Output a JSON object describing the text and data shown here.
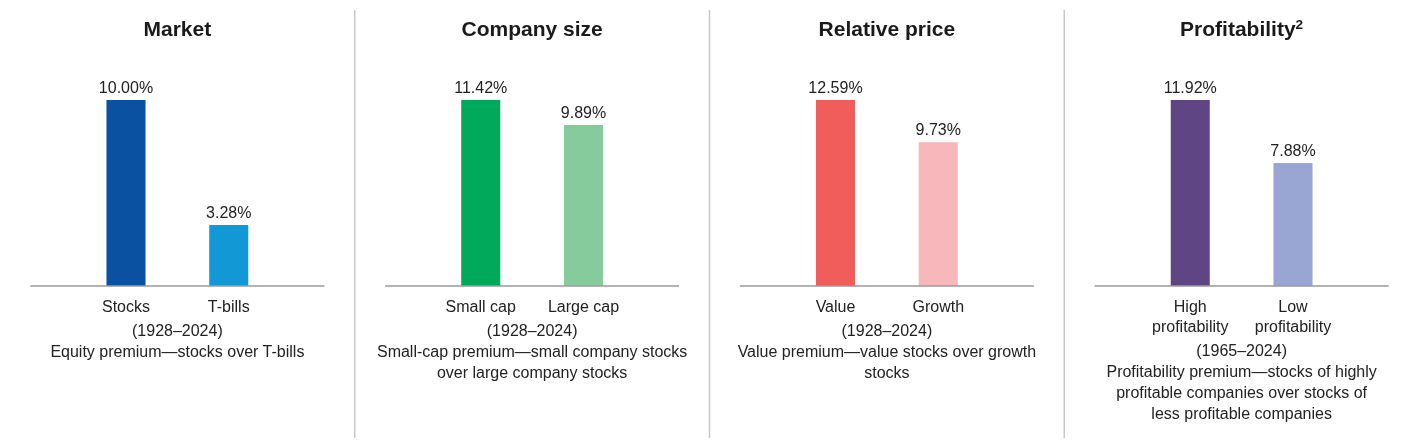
{
  "chart_data": [
    {
      "type": "bar",
      "title": "Market",
      "categories": [
        "Stocks",
        "T-bills"
      ],
      "values": [
        10.0,
        3.28
      ],
      "colors": [
        "#0a52a1",
        "#1398d6"
      ],
      "value_labels": [
        "10.00%",
        "3.28%"
      ],
      "annotations": [
        "(1928–2024)",
        "Equity premium—stocks over T-bills"
      ]
    },
    {
      "type": "bar",
      "title": "Company size",
      "categories": [
        "Small cap",
        "Large cap"
      ],
      "values": [
        11.42,
        9.89
      ],
      "colors": [
        "#00aa5a",
        "#86cb9c"
      ],
      "value_labels": [
        "11.42%",
        "9.89%"
      ],
      "annotations": [
        "(1928–2024)",
        "Small-cap premium—small company stocks over large company stocks"
      ]
    },
    {
      "type": "bar",
      "title": "Relative price",
      "categories": [
        "Value",
        "Growth"
      ],
      "values": [
        12.59,
        9.73
      ],
      "colors": [
        "#f05d5b",
        "#f7b7bb"
      ],
      "value_labels": [
        "12.59%",
        "9.73%"
      ],
      "annotations": [
        "(1928–2024)",
        "Value premium—value stocks over growth stocks"
      ]
    },
    {
      "type": "bar",
      "title": "Profitability$^{2}$",
      "categories": [
        "High profitability",
        "Low profitability"
      ],
      "values": [
        11.92,
        7.88
      ],
      "colors": [
        "#5f4584",
        "#99a5d3"
      ],
      "value_labels": [
        "11.92%",
        "7.88%"
      ],
      "annotations": [
        "(1965–2024)",
        "Profitability premium—stocks of highly profitable companies over stocks of less profitable companies"
      ]
    }
  ]
}
